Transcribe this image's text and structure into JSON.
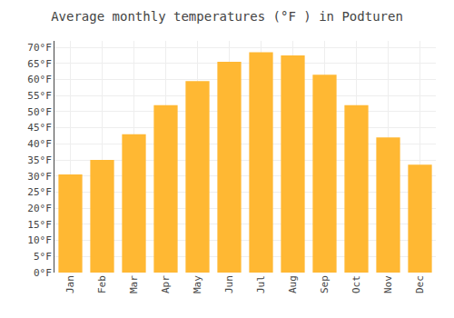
{
  "chart_data": {
    "type": "bar",
    "title": "Average monthly temperatures (°F ) in Podturen",
    "categories": [
      "Jan",
      "Feb",
      "Mar",
      "Apr",
      "May",
      "Jun",
      "Jul",
      "Aug",
      "Sep",
      "Oct",
      "Nov",
      "Dec"
    ],
    "values": [
      30.5,
      35.0,
      43.0,
      52.0,
      59.5,
      65.5,
      68.5,
      67.5,
      61.5,
      52.0,
      42.0,
      33.5
    ],
    "color": "#FFB833",
    "ylim": [
      0,
      72
    ],
    "yticks": [
      {
        "value": 0,
        "label": "0°F"
      },
      {
        "value": 5,
        "label": "5°F"
      },
      {
        "value": 10,
        "label": "10°F"
      },
      {
        "value": 15,
        "label": "15°F"
      },
      {
        "value": 20,
        "label": "20°F"
      },
      {
        "value": 25,
        "label": "25°F"
      },
      {
        "value": 30,
        "label": "30°F"
      },
      {
        "value": 35,
        "label": "35°F"
      },
      {
        "value": 40,
        "label": "40°F"
      },
      {
        "value": 45,
        "label": "45°F"
      },
      {
        "value": 50,
        "label": "50°F"
      },
      {
        "value": 55,
        "label": "55°F"
      },
      {
        "value": 60,
        "label": "60°F"
      },
      {
        "value": 65,
        "label": "65°F"
      },
      {
        "value": 70,
        "label": "70°F"
      }
    ],
    "grid": true
  }
}
